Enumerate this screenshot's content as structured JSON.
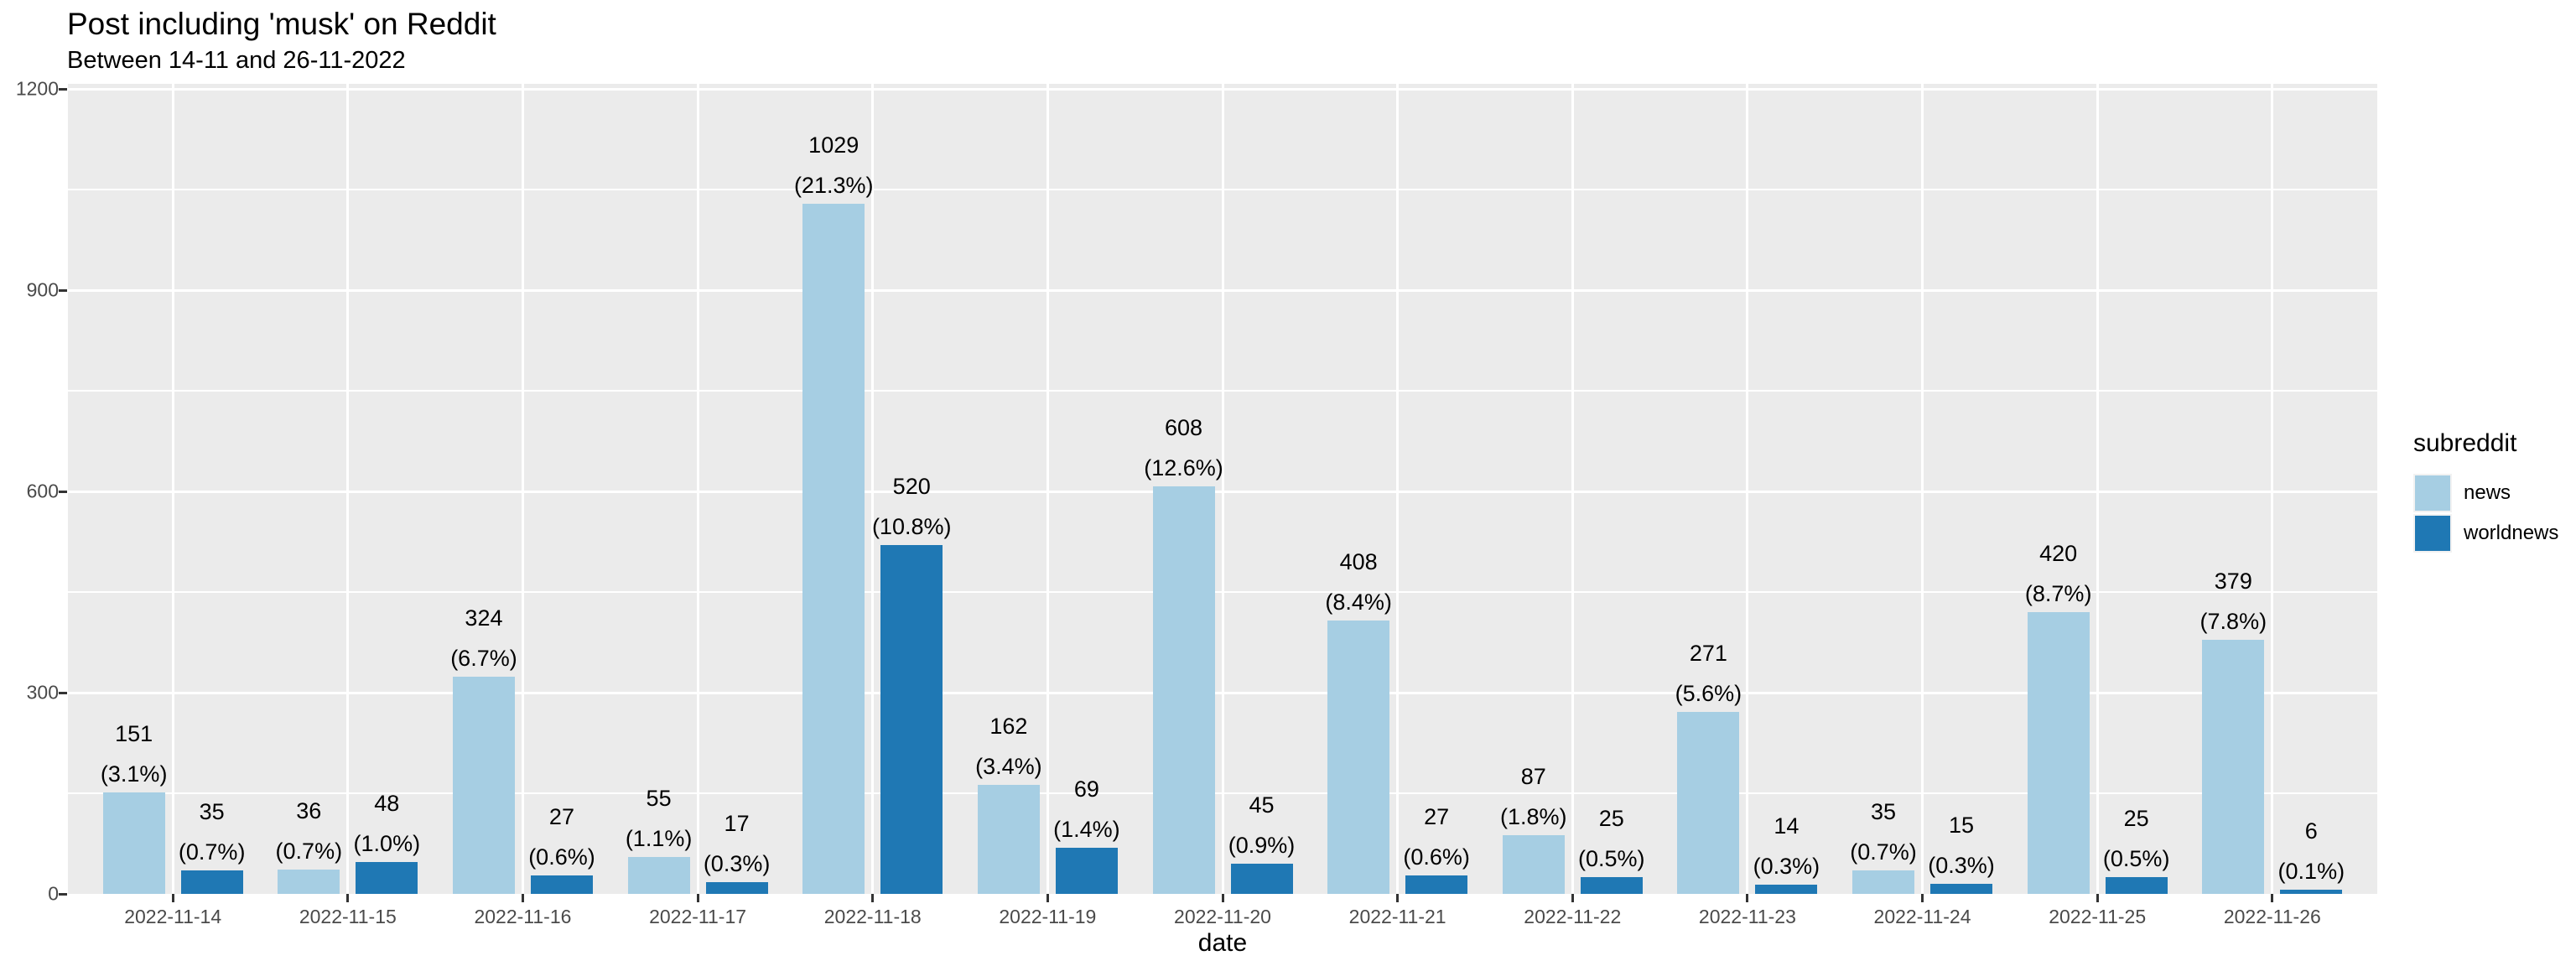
{
  "header": {
    "title": "Post including 'musk' on Reddit",
    "subtitle": "Between 14-11 and 26-11-2022"
  },
  "colors": {
    "news": "#A6CEE3",
    "worldnews": "#1F78B4",
    "panel_background": "#EBEBEB",
    "gridline": "#FFFFFF",
    "axis_text": "#4a4a4a",
    "tick_mark": "#333333",
    "label_text": "#000000",
    "page_background": "#FFFFFF",
    "legend_key_background": "#F2F2F2"
  },
  "legend": {
    "title": "subreddit",
    "position": "right",
    "items": [
      {
        "label": "news",
        "color": "#A6CEE3"
      },
      {
        "label": "worldnews",
        "color": "#1F78B4"
      }
    ]
  },
  "axes": {
    "x_title": "date",
    "y_title": "",
    "y_tick_labels": [
      "0",
      "300",
      "600",
      "900",
      "1200"
    ]
  },
  "chart_data": {
    "type": "bar",
    "title": "Post including 'musk' on Reddit",
    "subtitle": "Between 14-11 and 26-11-2022",
    "xlabel": "date",
    "ylabel": "",
    "ylim": [
      0,
      1200
    ],
    "yticks": [
      0,
      300,
      600,
      900,
      1200
    ],
    "minor_yticks": [
      150,
      450,
      750,
      1050
    ],
    "grid": true,
    "legend_position": "right",
    "bar_mode": "grouped",
    "categories": [
      "2022-11-14",
      "2022-11-15",
      "2022-11-16",
      "2022-11-17",
      "2022-11-18",
      "2022-11-19",
      "2022-11-20",
      "2022-11-21",
      "2022-11-22",
      "2022-11-23",
      "2022-11-24",
      "2022-11-25",
      "2022-11-26"
    ],
    "series": [
      {
        "name": "news",
        "color": "#A6CEE3",
        "values": [
          151,
          36,
          324,
          55,
          1029,
          162,
          608,
          408,
          87,
          271,
          35,
          420,
          379
        ],
        "percent_labels": [
          "(3.1%)",
          "(0.7%)",
          "(6.7%)",
          "(1.1%)",
          "(21.3%)",
          "(3.4%)",
          "(12.6%)",
          "(8.4%)",
          "(1.8%)",
          "(5.6%)",
          "(0.7%)",
          "(8.7%)",
          "(7.8%)"
        ]
      },
      {
        "name": "worldnews",
        "color": "#1F78B4",
        "values": [
          35,
          48,
          27,
          17,
          520,
          69,
          45,
          27,
          25,
          14,
          15,
          25,
          6
        ],
        "percent_labels": [
          "(0.7%)",
          "(1.0%)",
          "(0.6%)",
          "(0.3%)",
          "(10.8%)",
          "(1.4%)",
          "(0.9%)",
          "(0.6%)",
          "(0.5%)",
          "(0.3%)",
          "(0.3%)",
          "(0.5%)",
          "(0.1%)"
        ]
      }
    ]
  }
}
